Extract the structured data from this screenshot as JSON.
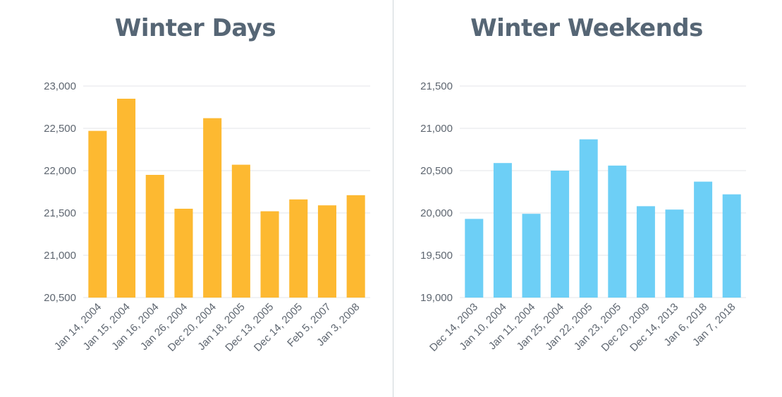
{
  "charts": [
    {
      "chart_data": {
        "type": "bar",
        "title": "Winter Days",
        "xlabel": "",
        "ylabel": "",
        "color": "#FDB931",
        "ylim": [
          20500,
          23000
        ],
        "yticks": [
          20500,
          21000,
          21500,
          22000,
          22500,
          23000
        ],
        "ytick_labels": [
          "20,500",
          "21,000",
          "21,500",
          "22,000",
          "22,500",
          "23,000"
        ],
        "categories": [
          "Jan 14, 2004",
          "Jan 15, 2004",
          "Jan 16, 2004",
          "Jan 26, 2004",
          "Dec 20, 2004",
          "Jan 18, 2005",
          "Dec 13, 2005",
          "Dec 14, 2005",
          "Feb 5, 2007",
          "Jan 3, 2008"
        ],
        "values": [
          22470,
          22850,
          21950,
          21550,
          22620,
          22070,
          21520,
          21660,
          21590,
          21710
        ],
        "grid": true,
        "legend": "none"
      }
    },
    {
      "chart_data": {
        "type": "bar",
        "title": "Winter Weekends",
        "xlabel": "",
        "ylabel": "",
        "color": "#6DCFF6",
        "ylim": [
          19000,
          21500
        ],
        "yticks": [
          19000,
          19500,
          20000,
          20500,
          21000,
          21500
        ],
        "ytick_labels": [
          "19,000",
          "19,500",
          "20,000",
          "20,500",
          "21,000",
          "21,500"
        ],
        "categories": [
          "Dec 14, 2003",
          "Jan 10, 2004",
          "Jan 11, 2004",
          "Jan 25, 2004",
          "Jan 22, 2005",
          "Jan 23, 2005",
          "Dec 20, 2009",
          "Dec 14, 2013",
          "Jan 6, 2018",
          "Jan 7, 2018"
        ],
        "values": [
          19930,
          20590,
          19990,
          20500,
          20870,
          20560,
          20080,
          20040,
          20370,
          20220
        ],
        "grid": true,
        "legend": "none"
      }
    }
  ]
}
